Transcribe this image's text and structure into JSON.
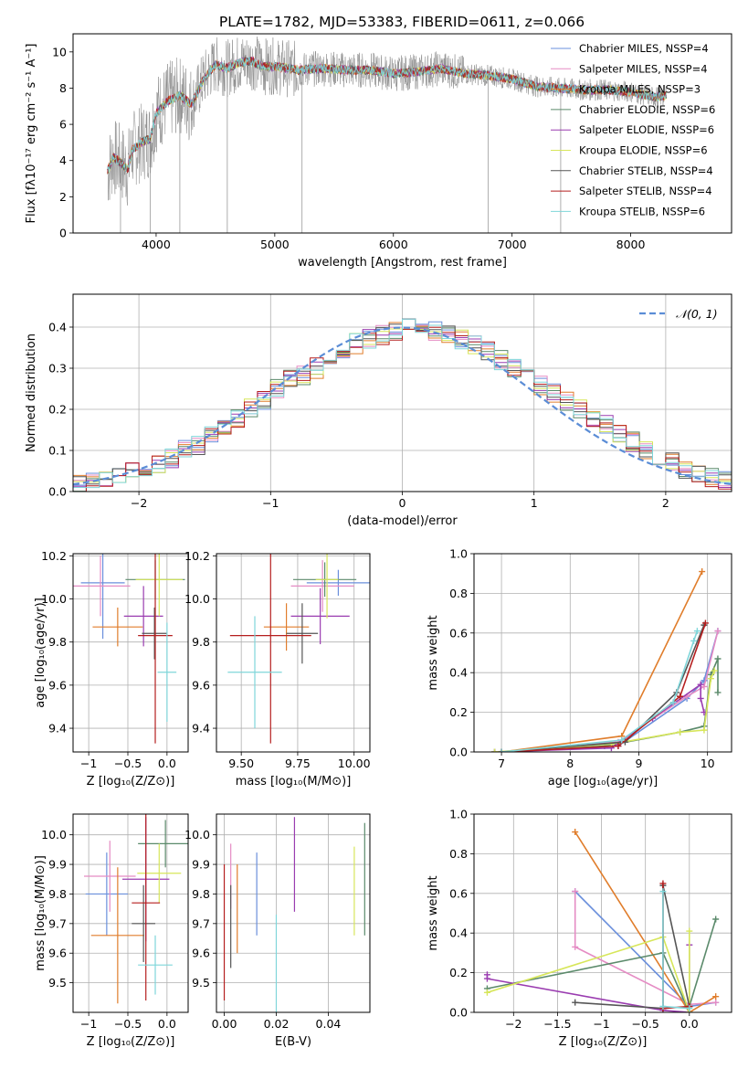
{
  "colors": [
    "#6a8fdc",
    "#e58cc4",
    "#e07d2b",
    "#5b8a6b",
    "#9a3cb0",
    "#d7e65a",
    "#555555",
    "#b51f1f",
    "#7fd6da"
  ],
  "chart_data": [
    {
      "id": "spectrum",
      "type": "line",
      "title": "PLATE=1782, MJD=53383, FIBERID=0611, z=0.066",
      "xlabel": "wavelength [Angstrom, rest frame]",
      "ylabel": "Flux [fλ10⁻¹⁷ erg cm⁻² s⁻¹ A⁻¹]",
      "xlim": [
        3300,
        8850
      ],
      "ylim": [
        0,
        11
      ],
      "xticks": [
        4000,
        5000,
        6000,
        7000,
        8000
      ],
      "yticks": [
        0,
        2,
        4,
        6,
        8,
        10
      ],
      "legend": [
        "Chabrier MILES, N_SSP=4",
        "Salpeter MILES, N_SSP=4",
        "Kroupa MILES, N_SSP=3",
        "Chabrier ELODIE, N_SSP=6",
        "Salpeter ELODIE, N_SSP=6",
        "Kroupa ELODIE, N_SSP=6",
        "Chabrier STELIB, N_SSP=4",
        "Salpeter STELIB, N_SSP=4",
        "Kroupa STELIB, N_SSP=6"
      ],
      "legend_position": "right",
      "model_continuum": [
        [
          3590,
          3.4
        ],
        [
          3640,
          4.2
        ],
        [
          3700,
          3.9
        ],
        [
          3760,
          3.5
        ],
        [
          3800,
          4.6
        ],
        [
          3880,
          5.0
        ],
        [
          3950,
          5.2
        ],
        [
          4000,
          6.6
        ],
        [
          4100,
          7.3
        ],
        [
          4200,
          7.6
        ],
        [
          4300,
          7.1
        ],
        [
          4400,
          8.5
        ],
        [
          4500,
          9.3
        ],
        [
          4600,
          9.1
        ],
        [
          4700,
          9.4
        ],
        [
          4800,
          9.5
        ],
        [
          4900,
          9.2
        ],
        [
          5000,
          9.2
        ],
        [
          5200,
          9.0
        ],
        [
          5400,
          9.1
        ],
        [
          5600,
          9.0
        ],
        [
          5800,
          9.0
        ],
        [
          6000,
          8.8
        ],
        [
          6200,
          8.9
        ],
        [
          6400,
          9.1
        ],
        [
          6600,
          8.8
        ],
        [
          6800,
          8.7
        ],
        [
          7000,
          8.5
        ],
        [
          7200,
          8.1
        ],
        [
          7400,
          8.0
        ],
        [
          7600,
          7.9
        ],
        [
          7800,
          7.9
        ],
        [
          8000,
          7.8
        ],
        [
          8200,
          7.5
        ],
        [
          8300,
          7.6
        ]
      ]
    },
    {
      "id": "residuals",
      "type": "step",
      "xlabel": "(data-model)/error",
      "ylabel": "Normed distribution",
      "xlim": [
        -2.5,
        2.5
      ],
      "ylim": [
        0,
        0.48
      ],
      "xticks": [
        -2,
        -1,
        0,
        1,
        2
      ],
      "yticks": [
        0.0,
        0.1,
        0.2,
        0.3,
        0.4
      ],
      "legend": [
        "𝒩(0, 1)"
      ],
      "legend_position": "top-right",
      "bin_edges": [
        -2.5,
        -2.4,
        -2.3,
        -2.2,
        -2.1,
        -2.0,
        -1.9,
        -1.8,
        -1.7,
        -1.6,
        -1.5,
        -1.4,
        -1.3,
        -1.2,
        -1.1,
        -1.0,
        -0.9,
        -0.8,
        -0.7,
        -0.6,
        -0.5,
        -0.4,
        -0.3,
        -0.2,
        -0.1,
        0.0,
        0.1,
        0.2,
        0.3,
        0.4,
        0.5,
        0.6,
        0.7,
        0.8,
        0.9,
        1.0,
        1.1,
        1.2,
        1.3,
        1.4,
        1.5,
        1.6,
        1.7,
        1.8,
        1.9,
        2.0,
        2.1,
        2.2,
        2.3,
        2.4,
        2.5
      ],
      "base_values": [
        0.02,
        0.025,
        0.03,
        0.04,
        0.05,
        0.06,
        0.07,
        0.08,
        0.1,
        0.11,
        0.14,
        0.16,
        0.18,
        0.2,
        0.22,
        0.25,
        0.27,
        0.28,
        0.3,
        0.32,
        0.34,
        0.36,
        0.37,
        0.38,
        0.39,
        0.4,
        0.4,
        0.39,
        0.38,
        0.37,
        0.36,
        0.34,
        0.32,
        0.3,
        0.28,
        0.26,
        0.24,
        0.22,
        0.2,
        0.18,
        0.16,
        0.14,
        0.12,
        0.1,
        0.08,
        0.07,
        0.05,
        0.04,
        0.035,
        0.03
      ]
    },
    {
      "id": "age_vs_Z",
      "type": "errorbar",
      "xlabel": "Z [log₁₀(Z/Z⊙)]",
      "ylabel": "age  [log₁₀(age/yr)]",
      "xlim": [
        -1.2,
        0.27
      ],
      "ylim": [
        9.29,
        10.21
      ],
      "xticks": [
        -1.0,
        -0.5,
        0.0
      ],
      "yticks": [
        9.4,
        9.6,
        9.8,
        10.0,
        10.2
      ],
      "points": [
        {
          "x": -0.82,
          "y": 10.075,
          "xerr": 0.28,
          "yerr": 0.26
        },
        {
          "x": -0.85,
          "y": 10.06,
          "xerr": 0.38,
          "yerr": 0.14
        },
        {
          "x": -0.63,
          "y": 9.87,
          "xerr": 0.32,
          "yerr": 0.09
        },
        {
          "x": -0.15,
          "y": 10.09,
          "xerr": 0.38,
          "yerr": 0.09
        },
        {
          "x": -0.3,
          "y": 9.92,
          "xerr": 0.25,
          "yerr": 0.14
        },
        {
          "x": -0.1,
          "y": 10.09,
          "xerr": 0.3,
          "yerr": 0.17
        },
        {
          "x": -0.16,
          "y": 9.84,
          "xerr": 0.16,
          "yerr": 0.12
        },
        {
          "x": -0.15,
          "y": 9.83,
          "xerr": 0.22,
          "yerr": 0.5
        },
        {
          "x": 0.0,
          "y": 9.66,
          "xerr": 0.12,
          "yerr": 0.23
        }
      ]
    },
    {
      "id": "age_vs_mass",
      "type": "errorbar",
      "xlabel": "mass [log₁₀(M/M⊙)]",
      "ylabel": "",
      "xlim": [
        9.39,
        10.07
      ],
      "ylim": [
        9.29,
        10.21
      ],
      "xticks": [
        9.5,
        9.75,
        10.0
      ],
      "yticks": [
        9.4,
        9.6,
        9.8,
        10.0,
        10.2
      ],
      "points": [
        {
          "x": 9.93,
          "y": 10.075,
          "xerr": 0.14,
          "yerr": 0.06
        },
        {
          "x": 9.86,
          "y": 10.06,
          "xerr": 0.14,
          "yerr": 0.12
        },
        {
          "x": 9.7,
          "y": 9.87,
          "xerr": 0.1,
          "yerr": 0.11
        },
        {
          "x": 9.87,
          "y": 10.09,
          "xerr": 0.14,
          "yerr": 0.08
        },
        {
          "x": 9.85,
          "y": 9.92,
          "xerr": 0.13,
          "yerr": 0.13
        },
        {
          "x": 9.88,
          "y": 10.09,
          "xerr": 0.05,
          "yerr": 0.18
        },
        {
          "x": 9.77,
          "y": 9.84,
          "xerr": 0.07,
          "yerr": 0.14
        },
        {
          "x": 9.63,
          "y": 9.83,
          "xerr": 0.18,
          "yerr": 0.5
        },
        {
          "x": 9.56,
          "y": 9.66,
          "xerr": 0.12,
          "yerr": 0.26
        }
      ]
    },
    {
      "id": "weight_vs_age",
      "type": "line",
      "xlabel": "age  [log₁₀(age/yr)]",
      "ylabel": "mass weight",
      "xlim": [
        6.6,
        10.35
      ],
      "ylim": [
        0,
        1.0
      ],
      "xticks": [
        7,
        8,
        9,
        10
      ],
      "yticks": [
        0.0,
        0.2,
        0.4,
        0.6,
        0.8,
        1.0
      ],
      "series": [
        {
          "x": [
            7.0,
            8.7,
            9.7,
            9.95,
            10.15
          ],
          "y": [
            0.0,
            0.03,
            0.27,
            0.36,
            0.61
          ]
        },
        {
          "x": [
            7.0,
            8.7,
            9.7,
            9.95,
            10.15
          ],
          "y": [
            0.0,
            0.05,
            0.28,
            0.33,
            0.61
          ]
        },
        {
          "x": [
            7.0,
            8.75,
            9.92
          ],
          "y": [
            0.0,
            0.08,
            0.91
          ]
        },
        {
          "x": [
            6.9,
            8.5,
            9.6,
            9.95,
            10.05,
            10.15,
            10.15
          ],
          "y": [
            0.0,
            0.03,
            0.1,
            0.13,
            0.39,
            0.47,
            0.3
          ]
        },
        {
          "x": [
            6.9,
            8.6,
            9.2,
            9.9,
            9.9,
            9.95
          ],
          "y": [
            0.0,
            0.02,
            0.17,
            0.34,
            0.27,
            0.2
          ]
        },
        {
          "x": [
            6.9,
            8.6,
            9.6,
            9.95,
            10.05,
            10.1
          ],
          "y": [
            0.0,
            0.04,
            0.1,
            0.11,
            0.37,
            0.41
          ]
        },
        {
          "x": [
            7.0,
            8.8,
            9.55,
            9.95
          ],
          "y": [
            0.0,
            0.05,
            0.3,
            0.64
          ]
        },
        {
          "x": [
            7.0,
            8.7,
            9.6,
            9.97
          ],
          "y": [
            0.0,
            0.03,
            0.28,
            0.65
          ]
        },
        {
          "x": [
            7.0,
            8.75,
            9.5,
            9.8,
            9.85
          ],
          "y": [
            0.0,
            0.06,
            0.25,
            0.56,
            0.61
          ]
        }
      ]
    },
    {
      "id": "mass_vs_Z",
      "type": "errorbar",
      "xlabel": "Z [log₁₀(Z/Z⊙)]",
      "ylabel": "mass [log₁₀(M/M⊙)]",
      "xlim": [
        -1.2,
        0.27
      ],
      "ylim": [
        9.4,
        10.07
      ],
      "xticks": [
        -1.0,
        -0.5,
        0.0
      ],
      "yticks": [
        9.5,
        9.6,
        9.7,
        9.8,
        9.9,
        10.0
      ],
      "points": [
        {
          "x": -0.77,
          "y": 9.8,
          "xerr": 0.27,
          "yerr": 0.14
        },
        {
          "x": -0.73,
          "y": 9.86,
          "xerr": 0.33,
          "yerr": 0.12
        },
        {
          "x": -0.63,
          "y": 9.66,
          "xerr": 0.34,
          "yerr": 0.23
        },
        {
          "x": -0.02,
          "y": 9.97,
          "xerr": 0.35,
          "yerr": 0.08
        },
        {
          "x": -0.27,
          "y": 9.85,
          "xerr": 0.3,
          "yerr": 0.21
        },
        {
          "x": -0.1,
          "y": 9.87,
          "xerr": 0.28,
          "yerr": 0.1
        },
        {
          "x": -0.3,
          "y": 9.7,
          "xerr": 0.15,
          "yerr": 0.13
        },
        {
          "x": -0.27,
          "y": 9.77,
          "xerr": 0.18,
          "yerr": 0.33
        },
        {
          "x": -0.15,
          "y": 9.56,
          "xerr": 0.22,
          "yerr": 0.1
        }
      ]
    },
    {
      "id": "mass_vs_ebv",
      "type": "errorbar",
      "xlabel": "E(B-V)",
      "ylabel": "",
      "xlim": [
        -0.003,
        0.056
      ],
      "ylim": [
        9.4,
        10.07
      ],
      "xticks": [
        0.0,
        0.02,
        0.04
      ],
      "yticks": [
        9.5,
        9.6,
        9.7,
        9.8,
        9.9,
        10.0
      ],
      "points": [
        {
          "x": 0.0125,
          "y": 9.8,
          "xerr": 0,
          "yerr": 0.14
        },
        {
          "x": 0.0025,
          "y": 9.86,
          "xerr": 0,
          "yerr": 0.11
        },
        {
          "x": 0.005,
          "y": 9.75,
          "xerr": 0,
          "yerr": 0.15
        },
        {
          "x": 0.054,
          "y": 9.85,
          "xerr": 0,
          "yerr": 0.19
        },
        {
          "x": 0.027,
          "y": 9.9,
          "xerr": 0,
          "yerr": 0.16
        },
        {
          "x": 0.05,
          "y": 9.81,
          "xerr": 0,
          "yerr": 0.15
        },
        {
          "x": 0.0025,
          "y": 9.69,
          "xerr": 0,
          "yerr": 0.14
        },
        {
          "x": 0.0,
          "y": 9.67,
          "xerr": 0,
          "yerr": 0.23
        },
        {
          "x": 0.02,
          "y": 9.55,
          "xerr": 0,
          "yerr": 0.18
        }
      ]
    },
    {
      "id": "weight_vs_Z",
      "type": "line",
      "xlabel": "Z [log₁₀(Z/Z⊙)]",
      "ylabel": "mass weight",
      "xlim": [
        -2.45,
        0.48
      ],
      "ylim": [
        0,
        1.0
      ],
      "xticks": [
        -2.0,
        -1.5,
        -1.0,
        -0.5,
        0.0
      ],
      "yticks": [
        0.0,
        0.2,
        0.4,
        0.6,
        0.8,
        1.0
      ],
      "series": [
        {
          "x": [
            -1.3,
            0.0,
            0.3
          ],
          "y": [
            0.61,
            0.03,
            0.05
          ]
        },
        {
          "x": [
            -1.3,
            -1.3,
            0.0,
            0.3
          ],
          "y": [
            0.61,
            0.33,
            0.04,
            0.05
          ]
        },
        {
          "x": [
            -1.3,
            0.0,
            0.3
          ],
          "y": [
            0.91,
            0.0,
            0.08
          ]
        },
        {
          "x": [
            -2.3,
            -0.3,
            0.0,
            0.0,
            0.3
          ],
          "y": [
            0.12,
            0.3,
            0.0,
            0.03,
            0.47
          ]
        },
        {
          "x": [
            -2.3,
            -2.3,
            -0.3,
            0.0,
            0.0
          ],
          "y": [
            0.19,
            0.17,
            0.01,
            0.0,
            0.34
          ]
        },
        {
          "x": [
            -2.3,
            -0.3,
            0.0,
            0.0
          ],
          "y": [
            0.1,
            0.38,
            0.0,
            0.41
          ]
        },
        {
          "x": [
            -1.3,
            -0.3,
            -0.3,
            0.0
          ],
          "y": [
            0.05,
            0.02,
            0.64,
            0.03
          ]
        },
        {
          "x": [
            -0.3,
            -0.3,
            0.0
          ],
          "y": [
            0.65,
            0.02,
            0.03
          ]
        },
        {
          "x": [
            -0.3,
            -0.3,
            0.0
          ],
          "y": [
            0.61,
            0.03,
            0.02
          ]
        }
      ]
    }
  ]
}
